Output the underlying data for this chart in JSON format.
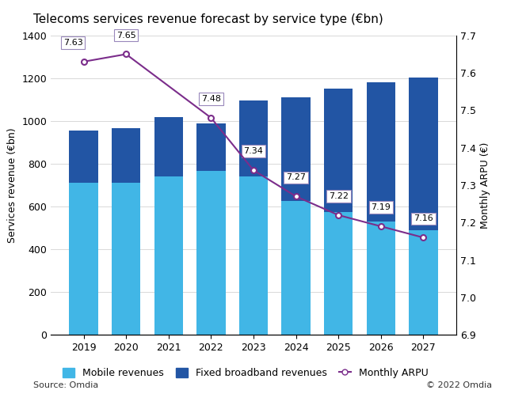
{
  "title": "Telecoms services revenue forecast by service type (€bn)",
  "years": [
    2019,
    2020,
    2021,
    2022,
    2023,
    2024,
    2025,
    2026,
    2027
  ],
  "mobile": [
    710,
    710,
    740,
    765,
    740,
    625,
    575,
    530,
    490
  ],
  "fixed": [
    245,
    255,
    280,
    225,
    355,
    485,
    575,
    650,
    715
  ],
  "arpu": [
    7.63,
    7.65,
    7.48,
    7.34,
    7.27,
    7.22,
    7.19,
    7.16
  ],
  "arpu_years": [
    2019,
    2020,
    2022,
    2023,
    2024,
    2025,
    2026,
    2027
  ],
  "mobile_color": "#41b6e6",
  "fixed_color": "#2255a4",
  "arpu_color": "#7b2d8b",
  "ylabel_left": "Services revenue (€bn)",
  "ylabel_right": "Monthly ARPU (€)",
  "ylim_left": [
    0,
    1400
  ],
  "ylim_right": [
    6.9,
    7.7
  ],
  "yticks_left": [
    0,
    200,
    400,
    600,
    800,
    1000,
    1200,
    1400
  ],
  "yticks_right": [
    6.9,
    7.0,
    7.1,
    7.2,
    7.3,
    7.4,
    7.5,
    7.6,
    7.7
  ],
  "source": "Source: Omdia",
  "copyright": "© 2022 Omdia",
  "background_color": "#ffffff",
  "grid_color": "#d8d8d8",
  "title_fontsize": 11,
  "label_fontsize": 9
}
